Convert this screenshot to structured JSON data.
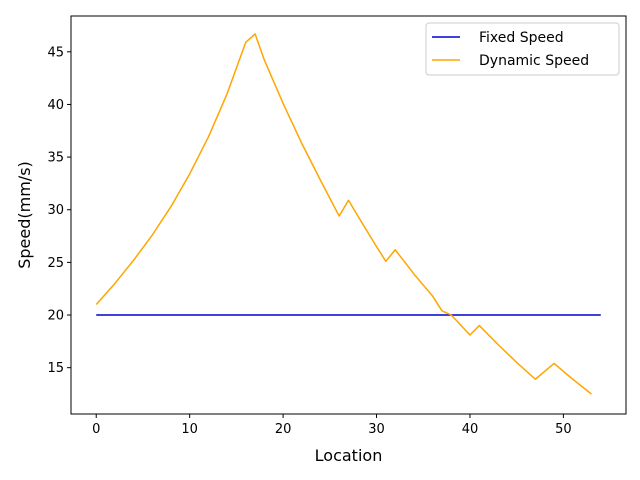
{
  "chart_data": {
    "type": "line",
    "title": "",
    "xlabel": "Location",
    "ylabel": "Speed(mm/s)",
    "xlim": [
      -2.7,
      56.7
    ],
    "ylim": [
      10.6,
      48.4
    ],
    "xticks": [
      0,
      10,
      20,
      30,
      40,
      50
    ],
    "yticks": [
      15,
      20,
      25,
      30,
      35,
      40,
      45
    ],
    "grid": false,
    "legend_position": "top-right",
    "series": [
      {
        "name": "Fixed Speed",
        "color": "#0000cd",
        "x": [
          0,
          54
        ],
        "y": [
          20,
          20
        ]
      },
      {
        "name": "Dynamic Speed",
        "color": "#ffa500",
        "x": [
          0,
          2,
          4,
          6,
          8,
          10,
          12,
          14,
          16,
          17,
          18,
          20,
          22,
          24,
          26,
          27,
          28,
          30,
          31,
          32,
          34,
          36,
          37,
          38,
          40,
          41,
          43,
          45,
          47,
          49,
          51,
          53
        ],
        "y": [
          21.0,
          23.0,
          25.2,
          27.6,
          30.3,
          33.4,
          36.9,
          41.0,
          45.9,
          46.7,
          44.2,
          40.1,
          36.3,
          32.8,
          29.4,
          30.9,
          29.4,
          26.5,
          25.1,
          26.2,
          23.9,
          21.8,
          20.4,
          20.0,
          18.1,
          19.0,
          17.2,
          15.5,
          13.9,
          15.4,
          13.9,
          12.5
        ]
      }
    ]
  }
}
